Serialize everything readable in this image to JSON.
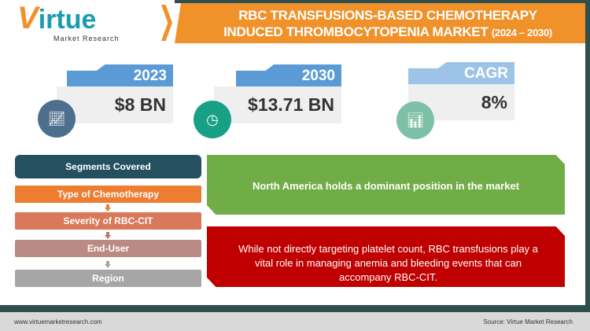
{
  "logo": {
    "brand_letter": "V",
    "brand_rest": "irtue",
    "tagline": "Market Research"
  },
  "header": {
    "title_line1": "RBC TRANSFUSIONS-BASED CHEMOTHERAPY",
    "title_line2": "INDUCED THROMBOCYTOPENIA  MARKET",
    "years": "(2024 – 2030)"
  },
  "stats": [
    {
      "label": "2023",
      "value": "$8 BN",
      "icon": "line-chart-icon",
      "color": "#5b9bd5",
      "circle": "#4e6e8e"
    },
    {
      "label": "2030",
      "value": "$13.71 BN",
      "icon": "pie-chart-icon",
      "color": "#5b9bd5",
      "circle": "#17a086"
    },
    {
      "label": "CAGR",
      "value": "8%",
      "icon": "growth-chart-icon",
      "color": "#9dc3e6",
      "circle": "#7dbfa7"
    }
  ],
  "segments": {
    "title": "Segments Covered",
    "items": [
      "Type of Chemotherapy",
      "Severity of RBC-CIT",
      "End-User",
      "Region"
    ]
  },
  "insights": [
    "North America holds a dominant position in the market",
    "While not directly targeting platelet count, RBC transfusions play a vital role in managing anemia and bleeding events that can accompany RBC-CIT."
  ],
  "footer": {
    "url": "www.virtuemarketresearch.com",
    "source": "Source:  Virtue Market Research"
  }
}
